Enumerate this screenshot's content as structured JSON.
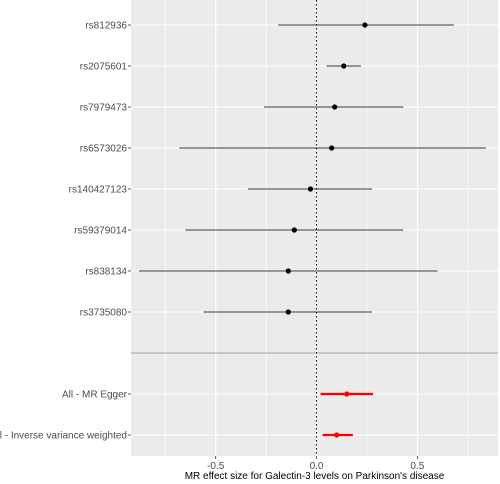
{
  "chart_data": {
    "type": "scatter",
    "subtype": "forest-plot",
    "title": "",
    "xlabel": "MR effect size for Galectin-3 levels on Parkinson's disease",
    "ylabel": "",
    "xlim": [
      -0.92,
      0.9
    ],
    "x_ticks": [
      -0.5,
      0.0,
      0.5
    ],
    "x_tick_labels": [
      "-0.5",
      "0.0",
      "0.5"
    ],
    "reference_line": 0,
    "grid": true,
    "background": "#ebebeb",
    "grid_color": "#ffffff",
    "snps": [
      {
        "label": "rs812936",
        "estimate": 0.24,
        "lower": -0.19,
        "upper": 0.68
      },
      {
        "label": "rs2075601",
        "estimate": 0.135,
        "lower": 0.05,
        "upper": 0.22
      },
      {
        "label": "rs7979473",
        "estimate": 0.09,
        "lower": -0.26,
        "upper": 0.43
      },
      {
        "label": "rs6573026",
        "estimate": 0.075,
        "lower": -0.68,
        "upper": 0.84
      },
      {
        "label": "rs140427123",
        "estimate": -0.03,
        "lower": -0.34,
        "upper": 0.275
      },
      {
        "label": "rs59379014",
        "estimate": -0.11,
        "lower": -0.65,
        "upper": 0.43
      },
      {
        "label": "rs838134",
        "estimate": -0.14,
        "lower": -0.88,
        "upper": 0.6
      },
      {
        "label": "rs3735080",
        "estimate": -0.14,
        "lower": -0.56,
        "upper": 0.275
      }
    ],
    "summary": [
      {
        "label": "All - MR Egger",
        "estimate": 0.15,
        "lower": 0.02,
        "upper": 0.28
      },
      {
        "label": "All - Inverse variance weighted",
        "estimate": 0.1,
        "lower": 0.03,
        "upper": 0.18
      }
    ],
    "snp_color": "#000000",
    "summary_color": "#ff0000"
  }
}
